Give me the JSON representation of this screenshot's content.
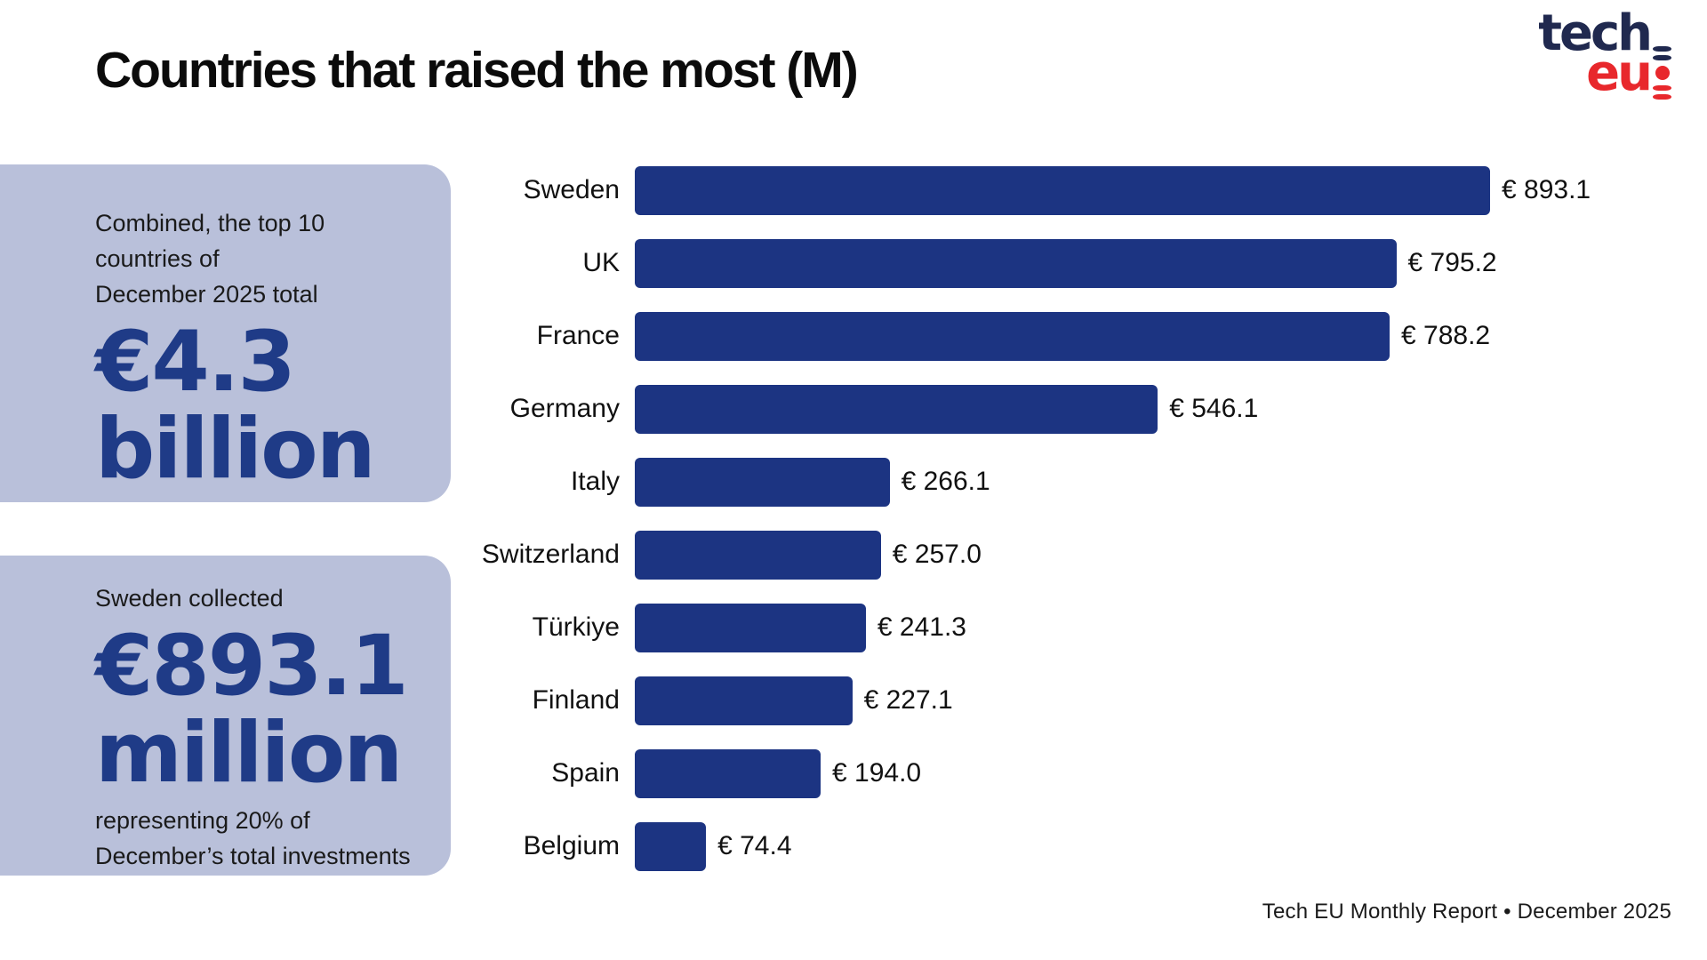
{
  "header": {
    "title": "Countries that raised the most (M)"
  },
  "logo": {
    "tech": "tech",
    "eu": "eu"
  },
  "colors": {
    "bar": "#1c3482",
    "big_number": "#1f3b87",
    "callout_bg": "#b9c0da",
    "logo_navy": "#20294f",
    "logo_red": "#e8282c"
  },
  "callouts": [
    {
      "intro_line1": "Combined, the top 10 countries of",
      "intro_line2": "December 2025 total",
      "big_line1": "€4.3",
      "big_line2": "billion"
    },
    {
      "intro_line1": "Sweden collected",
      "big_line1": "€893.1",
      "big_line2": "million",
      "outro_line1": "representing 20% of",
      "outro_line2": "December’s total investments"
    }
  ],
  "chart_data": {
    "type": "bar",
    "orientation": "horizontal",
    "title": "Countries that raised the most (M)",
    "currency": "€",
    "categories": [
      "Sweden",
      "UK",
      "France",
      "Germany",
      "Italy",
      "Switzerland",
      "Türkiye",
      "Finland",
      "Spain",
      "Belgium"
    ],
    "values": [
      893.1,
      795.2,
      788.2,
      546.1,
      266.1,
      257.0,
      241.3,
      227.1,
      194.0,
      74.4
    ],
    "value_labels": [
      "€ 893.1",
      "€ 795.2",
      "€ 788.2",
      "€ 546.1",
      "€ 266.1",
      "€ 257.0",
      "€ 241.3",
      "€ 227.1",
      "€ 194.0",
      "€ 74.4"
    ],
    "xlim": [
      0,
      893.1
    ],
    "grid": false,
    "legend": false,
    "value_label_position": "outside-right",
    "bar_color": "#1c3482"
  },
  "footer": {
    "text": "Tech EU Monthly Report • December 2025"
  }
}
